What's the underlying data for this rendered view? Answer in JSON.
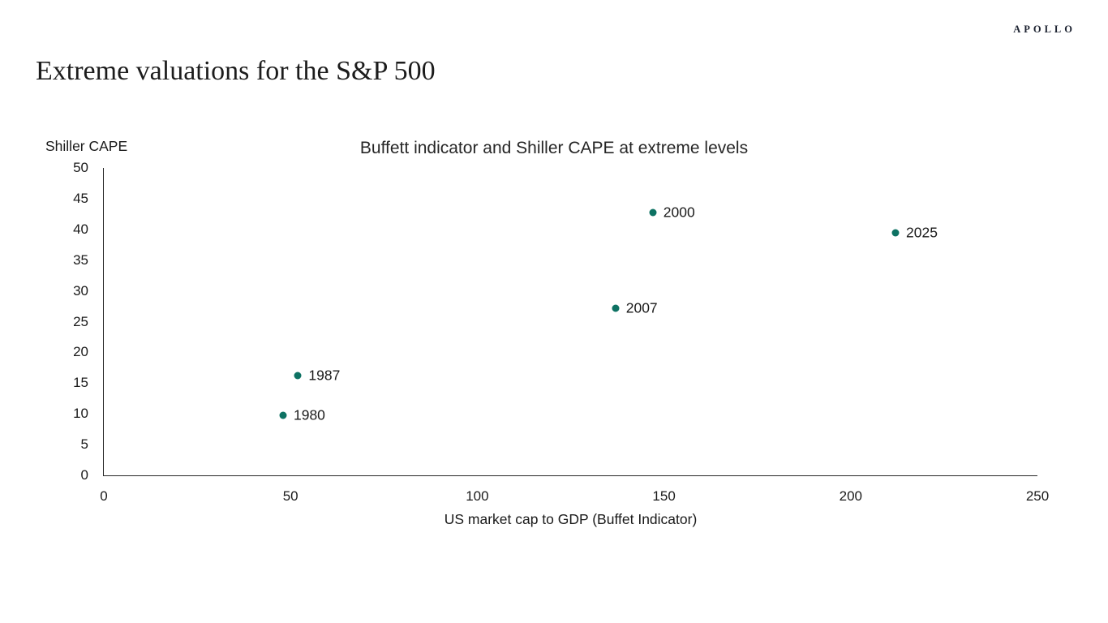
{
  "brand": {
    "logo": "APOLLO"
  },
  "page_title": "Extreme valuations for the S&P 500",
  "chart_data": {
    "type": "scatter",
    "title": "Buffett indicator and Shiller CAPE at extreme levels",
    "xlabel": "US market cap to GDP (Buffet Indicator)",
    "ylabel": "Shiller CAPE",
    "xlim": [
      0,
      250
    ],
    "ylim": [
      0,
      50
    ],
    "xticks": [
      0,
      50,
      100,
      150,
      200,
      250
    ],
    "yticks": [
      0,
      5,
      10,
      15,
      20,
      25,
      30,
      35,
      40,
      45,
      50
    ],
    "grid": false,
    "legend": "none",
    "axis_color": "#262626",
    "point_color": "#0E7263",
    "points": [
      {
        "label": "1980",
        "x": 48,
        "y": 9.7
      },
      {
        "label": "1987",
        "x": 52,
        "y": 16.2
      },
      {
        "label": "2000",
        "x": 147,
        "y": 42.7
      },
      {
        "label": "2007",
        "x": 137,
        "y": 27.2
      },
      {
        "label": "2025",
        "x": 212,
        "y": 39.4
      }
    ]
  }
}
